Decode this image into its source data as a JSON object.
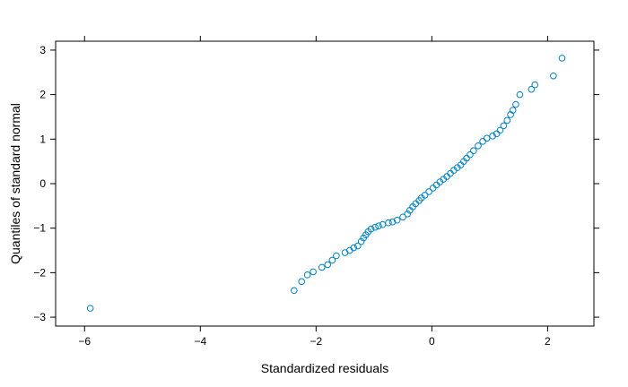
{
  "chart_data": {
    "type": "scatter",
    "title": "",
    "xlabel": "Standardized residuals",
    "ylabel": "Quantiles of standard normal",
    "xlim": [
      -6.5,
      2.8
    ],
    "ylim": [
      -3.2,
      3.2
    ],
    "xticks": [
      -6,
      -4,
      -2,
      0,
      2
    ],
    "yticks": [
      -3,
      -2,
      -1,
      0,
      1,
      2,
      3
    ],
    "grid": false,
    "marker": "open-circle",
    "marker_color": "#0080c0",
    "series": [
      {
        "points": [
          [
            -5.9,
            -2.8
          ],
          [
            -2.38,
            -2.4
          ],
          [
            -2.25,
            -2.2
          ],
          [
            -2.15,
            -2.05
          ],
          [
            -2.05,
            -1.98
          ],
          [
            -1.9,
            -1.88
          ],
          [
            -1.8,
            -1.82
          ],
          [
            -1.72,
            -1.72
          ],
          [
            -1.65,
            -1.62
          ],
          [
            -1.5,
            -1.55
          ],
          [
            -1.42,
            -1.5
          ],
          [
            -1.35,
            -1.44
          ],
          [
            -1.28,
            -1.4
          ],
          [
            -1.22,
            -1.3
          ],
          [
            -1.18,
            -1.22
          ],
          [
            -1.14,
            -1.15
          ],
          [
            -1.1,
            -1.08
          ],
          [
            -1.05,
            -1.02
          ],
          [
            -0.98,
            -0.98
          ],
          [
            -0.92,
            -0.95
          ],
          [
            -0.85,
            -0.92
          ],
          [
            -0.75,
            -0.88
          ],
          [
            -0.68,
            -0.86
          ],
          [
            -0.6,
            -0.82
          ],
          [
            -0.5,
            -0.75
          ],
          [
            -0.42,
            -0.68
          ],
          [
            -0.38,
            -0.6
          ],
          [
            -0.33,
            -0.52
          ],
          [
            -0.28,
            -0.45
          ],
          [
            -0.22,
            -0.38
          ],
          [
            -0.18,
            -0.32
          ],
          [
            -0.12,
            -0.26
          ],
          [
            -0.05,
            -0.18
          ],
          [
            0.02,
            -0.1
          ],
          [
            0.08,
            -0.03
          ],
          [
            0.14,
            0.04
          ],
          [
            0.2,
            0.1
          ],
          [
            0.26,
            0.16
          ],
          [
            0.32,
            0.23
          ],
          [
            0.38,
            0.3
          ],
          [
            0.44,
            0.36
          ],
          [
            0.5,
            0.42
          ],
          [
            0.55,
            0.5
          ],
          [
            0.6,
            0.57
          ],
          [
            0.66,
            0.65
          ],
          [
            0.72,
            0.74
          ],
          [
            0.8,
            0.85
          ],
          [
            0.88,
            0.95
          ],
          [
            0.95,
            1.02
          ],
          [
            1.05,
            1.07
          ],
          [
            1.12,
            1.12
          ],
          [
            1.18,
            1.2
          ],
          [
            1.24,
            1.3
          ],
          [
            1.3,
            1.42
          ],
          [
            1.36,
            1.55
          ],
          [
            1.4,
            1.65
          ],
          [
            1.45,
            1.78
          ],
          [
            1.52,
            2.0
          ],
          [
            1.72,
            2.12
          ],
          [
            1.78,
            2.22
          ],
          [
            2.1,
            2.42
          ],
          [
            2.25,
            2.82
          ]
        ]
      }
    ]
  }
}
